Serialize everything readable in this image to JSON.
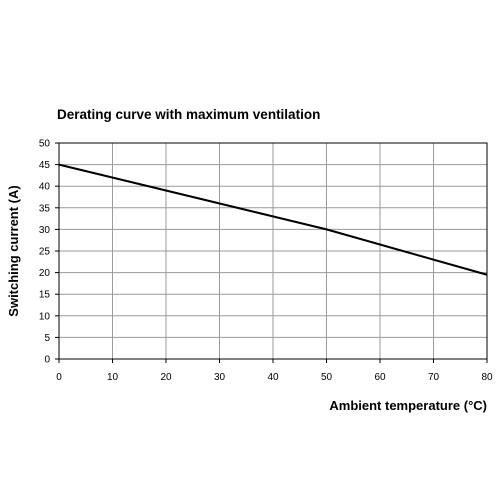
{
  "chart_data": {
    "type": "line",
    "title": "Derating curve with maximum ventilation",
    "xlabel": "Ambient temperature (°C)",
    "ylabel": "Switching current (A)",
    "xlim": [
      0,
      80
    ],
    "ylim": [
      0,
      50
    ],
    "x_ticks": [
      0,
      10,
      20,
      30,
      40,
      50,
      60,
      70,
      80
    ],
    "y_ticks": [
      0,
      5,
      10,
      15,
      20,
      25,
      30,
      35,
      40,
      45,
      50
    ],
    "grid": true,
    "legend": "none",
    "series": [
      {
        "color": "#000000",
        "points": [
          {
            "x": 0,
            "y": 45
          },
          {
            "x": 50,
            "y": 30
          },
          {
            "x": 80,
            "y": 19.5
          }
        ]
      }
    ]
  }
}
